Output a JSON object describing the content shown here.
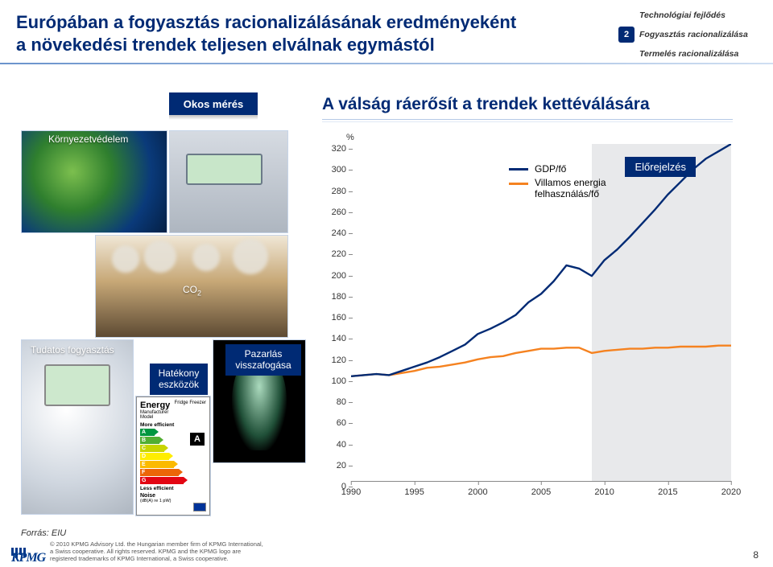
{
  "header": {
    "title_line1": "Európában a fogyasztás racionalizálásának eredményeként",
    "title_line2": "a növekedési trendek teljesen elválnak egymástól"
  },
  "sidebar": {
    "items": [
      {
        "num": "",
        "label": "Technológiai fejlődés"
      },
      {
        "num": "2",
        "label": "Fogyasztás racionalizálása"
      },
      {
        "num": "",
        "label": "Termelés racionalizálása"
      }
    ]
  },
  "okos": "Okos mérés",
  "chart_title": "A válság ráerősít a trendek kettéválására",
  "labels": {
    "env": "Környezetvédelem",
    "co2": "CO",
    "co2_sub": "2",
    "tudatos": "Tudatos fogyasztás",
    "hatekony": "Hatékony\neszközök",
    "pazarlas": "Pazarlás\nvisszafogása"
  },
  "energy_label": {
    "title": "Energy",
    "sub1": "Manufacturer",
    "sub2": "Model",
    "more": "More efficient",
    "less": "Less efficient",
    "big_letter": "A",
    "fridge": "Fridge Freezer",
    "noise": "Noise",
    "noise_val": "(dB(A) re 1 pW)",
    "letters": [
      "A",
      "B",
      "C",
      "D",
      "E",
      "F",
      "G"
    ],
    "colors": [
      "#009640",
      "#52ae32",
      "#c8d400",
      "#ffed00",
      "#fbba00",
      "#ec6608",
      "#e30613"
    ]
  },
  "chart": {
    "percent": "%",
    "y_ticks": [
      0,
      20,
      40,
      60,
      80,
      100,
      120,
      140,
      160,
      180,
      200,
      220,
      240,
      260,
      280,
      300,
      320
    ],
    "x_ticks": [
      1990,
      1995,
      2000,
      2005,
      2010,
      2015,
      2020
    ],
    "x_min": 1990,
    "x_max": 2020,
    "y_min": 0,
    "y_max": 320,
    "forecast_start": 2009,
    "forecast_label": "Előrejelzés",
    "legend": [
      {
        "label": "GDP/fő",
        "color": "#002a74"
      },
      {
        "label": "Villamos energia\nfelhasználás/fő",
        "color": "#f58220"
      }
    ],
    "series": {
      "gdp": {
        "color": "#002a74",
        "points": [
          [
            1990,
            100
          ],
          [
            1991,
            101
          ],
          [
            1992,
            102
          ],
          [
            1993,
            101
          ],
          [
            1994,
            105
          ],
          [
            1995,
            109
          ],
          [
            1996,
            113
          ],
          [
            1997,
            118
          ],
          [
            1998,
            124
          ],
          [
            1999,
            130
          ],
          [
            2000,
            140
          ],
          [
            2001,
            145
          ],
          [
            2002,
            151
          ],
          [
            2003,
            158
          ],
          [
            2004,
            170
          ],
          [
            2005,
            178
          ],
          [
            2006,
            190
          ],
          [
            2007,
            205
          ],
          [
            2008,
            202
          ],
          [
            2009,
            195
          ],
          [
            2010,
            210
          ],
          [
            2011,
            220
          ],
          [
            2012,
            232
          ],
          [
            2013,
            245
          ],
          [
            2014,
            258
          ],
          [
            2015,
            272
          ],
          [
            2016,
            284
          ],
          [
            2017,
            296
          ],
          [
            2018,
            306
          ],
          [
            2019,
            313
          ],
          [
            2020,
            320
          ]
        ]
      },
      "elec": {
        "color": "#f58220",
        "points": [
          [
            1990,
            100
          ],
          [
            1991,
            101
          ],
          [
            1992,
            102
          ],
          [
            1993,
            101
          ],
          [
            1994,
            103
          ],
          [
            1995,
            105
          ],
          [
            1996,
            108
          ],
          [
            1997,
            109
          ],
          [
            1998,
            111
          ],
          [
            1999,
            113
          ],
          [
            2000,
            116
          ],
          [
            2001,
            118
          ],
          [
            2002,
            119
          ],
          [
            2003,
            122
          ],
          [
            2004,
            124
          ],
          [
            2005,
            126
          ],
          [
            2006,
            126
          ],
          [
            2007,
            127
          ],
          [
            2008,
            127
          ],
          [
            2009,
            122
          ],
          [
            2010,
            124
          ],
          [
            2011,
            125
          ],
          [
            2012,
            126
          ],
          [
            2013,
            126
          ],
          [
            2014,
            127
          ],
          [
            2015,
            127
          ],
          [
            2016,
            128
          ],
          [
            2017,
            128
          ],
          [
            2018,
            128
          ],
          [
            2019,
            129
          ],
          [
            2020,
            129
          ]
        ]
      }
    }
  },
  "forras": "Forrás: EIU",
  "footer": "© 2010 KPMG Advisory Ltd. the Hungarian member firm of KPMG International,\na Swiss cooperative. All rights reserved. KPMG and the KPMG logo are\nregistered trademarks of KPMG International, a Swiss cooperative.",
  "page_num": "8"
}
